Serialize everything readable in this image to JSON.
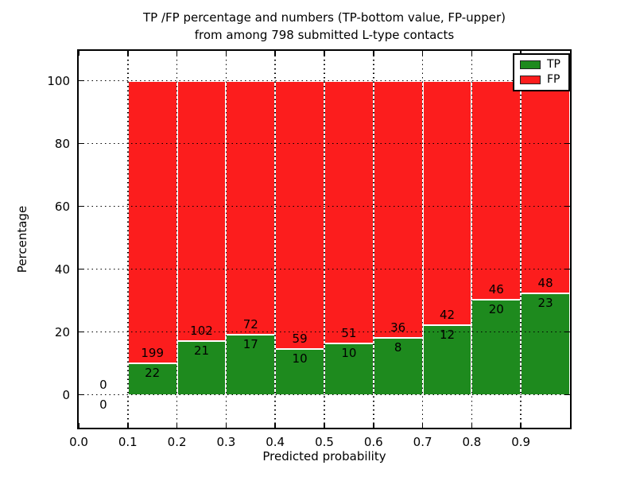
{
  "chart_data": {
    "type": "bar",
    "subtype": "stacked-percentage",
    "title_line1": "TP /FP percentage and numbers (TP-bottom value, FP-upper)",
    "title_line2": "from among 798 submitted L-type contacts",
    "xlabel": "Predicted probability",
    "ylabel": "Percentage",
    "xlim": [
      0.0,
      1.0
    ],
    "ylim": [
      -10.5,
      109.5
    ],
    "x_tick_values": [
      0.0,
      0.1,
      0.2,
      0.3,
      0.4,
      0.5,
      0.6,
      0.7,
      0.8,
      0.9
    ],
    "x_tick_labels": [
      "0.0",
      "0.1",
      "0.2",
      "0.3",
      "0.4",
      "0.5",
      "0.6",
      "0.7",
      "0.8",
      "0.9"
    ],
    "y_tick_values": [
      0,
      20,
      40,
      60,
      80,
      100
    ],
    "y_tick_labels": [
      "0",
      "20",
      "40",
      "60",
      "80",
      "100"
    ],
    "grid": true,
    "legend_position": "upper right",
    "legend": [
      {
        "label": "TP",
        "color": "#1e8a1e"
      },
      {
        "label": "FP",
        "color": "#fc1d1d"
      }
    ],
    "total_contacts": 798,
    "bins": [
      {
        "x_start": 0.0,
        "x_end": 0.1,
        "tp": 0,
        "fp": 0
      },
      {
        "x_start": 0.1,
        "x_end": 0.2,
        "tp": 22,
        "fp": 199
      },
      {
        "x_start": 0.2,
        "x_end": 0.3,
        "tp": 21,
        "fp": 102
      },
      {
        "x_start": 0.3,
        "x_end": 0.4,
        "tp": 17,
        "fp": 72
      },
      {
        "x_start": 0.4,
        "x_end": 0.5,
        "tp": 10,
        "fp": 59
      },
      {
        "x_start": 0.5,
        "x_end": 0.6,
        "tp": 10,
        "fp": 51
      },
      {
        "x_start": 0.6,
        "x_end": 0.7,
        "tp": 8,
        "fp": 36
      },
      {
        "x_start": 0.7,
        "x_end": 0.8,
        "tp": 12,
        "fp": 42
      },
      {
        "x_start": 0.8,
        "x_end": 0.9,
        "tp": 20,
        "fp": 46
      },
      {
        "x_start": 0.9,
        "x_end": 1.0,
        "tp": 23,
        "fp": 48
      }
    ],
    "colors": {
      "tp": "#1e8a1e",
      "fp": "#fc1d1d",
      "grid": "#000000",
      "text": "#000000",
      "bar_edge": "#ffffff"
    }
  }
}
